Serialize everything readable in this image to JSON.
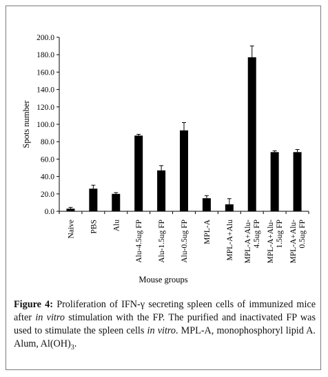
{
  "chart_data": {
    "type": "bar",
    "categories": [
      "Naive",
      "PBS",
      "Alu",
      "Alu-4.5ug FP",
      "Alu-1.5ug FP",
      "Alu-0.5ug FP",
      "MPL-A",
      "MPL-A+Alu",
      [
        "MPL-A+Alu-",
        "4.5ug FP"
      ],
      [
        "MPL-A+Alu-",
        "1.5ug FP"
      ],
      [
        "MPL-A+Alu-",
        "0.5ug FP"
      ]
    ],
    "values": [
      3,
      26,
      20,
      87,
      47,
      93,
      15,
      8,
      177,
      68,
      68
    ],
    "errors": [
      1.5,
      4,
      1.5,
      1.5,
      5.5,
      9,
      3,
      6.5,
      13,
      1.5,
      3
    ],
    "ylabel": "Spots number",
    "xlabel": "Mouse groups",
    "ylim": [
      0,
      200
    ],
    "yticks": [
      "0.0",
      "20.0",
      "40.0",
      "60.0",
      "80.0",
      "100.0",
      "120.0",
      "140.0",
      "160.0",
      "180.0",
      "200.0"
    ],
    "bar_color": "#000000",
    "grid": false
  },
  "caption": {
    "label": "Figure 4:",
    "text1": " Proliferation of IFN-γ secreting spleen cells of immunized mice after ",
    "italic1": "in vitro",
    "text2": " stimulation with the FP. The purified and inactivated FP was used to stimulate the spleen cells ",
    "italic2": "in vitro",
    "text3": ". MPL-A, monophosphoryl lipid A. Alum, Al(OH)",
    "sub": "3",
    "text4": "."
  }
}
